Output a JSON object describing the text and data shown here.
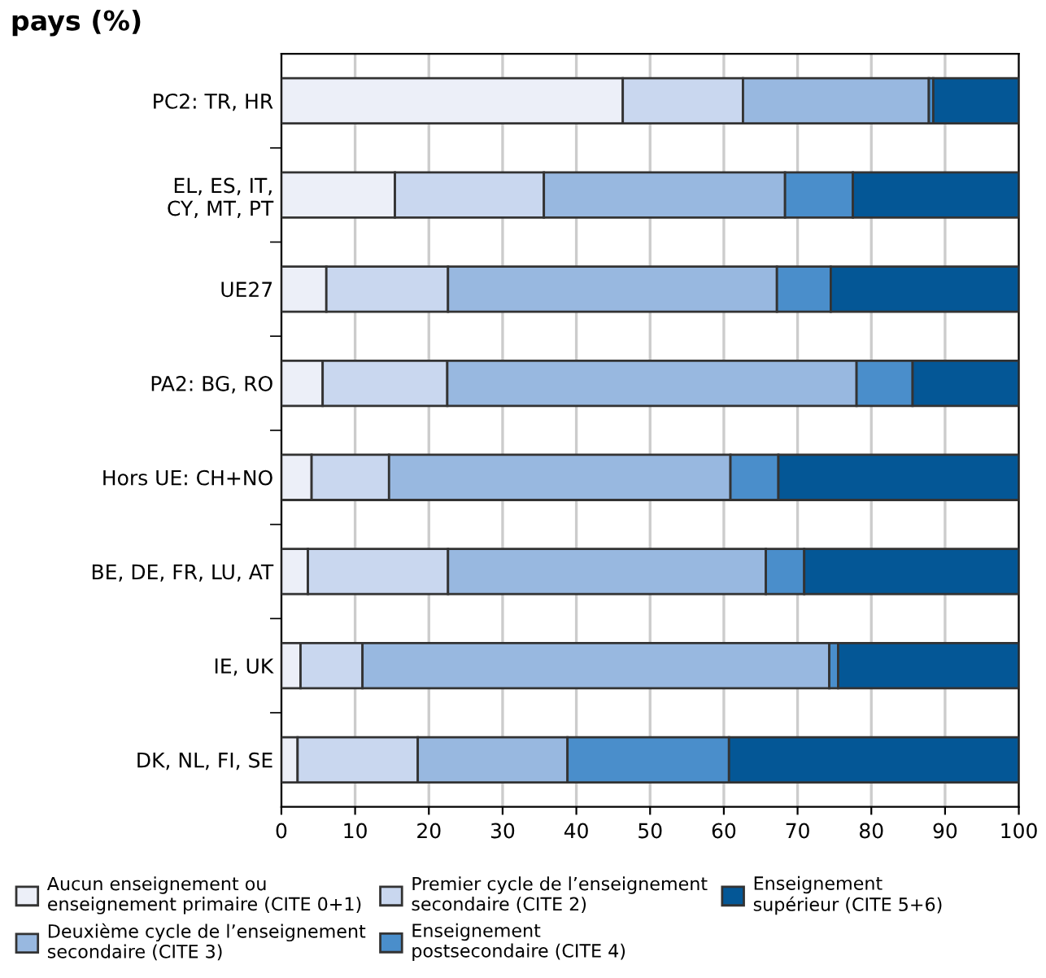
{
  "chart_data": {
    "type": "bar",
    "orientation": "horizontal",
    "stacked": true,
    "title": "pays (%)",
    "categories": [
      "PC2: TR, HR",
      "EL, ES, IT,\nCY, MT, PT",
      "UE27",
      "PA2: BG, RO",
      "Hors UE: CH+NO",
      "BE, DE, FR, LU, AT",
      "IE, UK",
      "DK, NL, FI, SE"
    ],
    "series": [
      {
        "name": "Aucun enseignement ou\nenseignement primaire (CITE 0+1)",
        "color": "#eceff8",
        "values": [
          46.3,
          15.4,
          6.1,
          5.6,
          4.1,
          3.6,
          2.6,
          2.2
        ]
      },
      {
        "name": "Premier cycle de l’enseignement\nsecondaire (CITE 2)",
        "color": "#c9d7ef",
        "values": [
          16.3,
          20.2,
          16.5,
          16.9,
          10.5,
          19.0,
          8.4,
          16.3
        ]
      },
      {
        "name": "Deuxième cycle de l’enseignement\nsecondaire (CITE 3)",
        "color": "#98b8e0",
        "values": [
          25.2,
          32.7,
          44.6,
          55.5,
          46.3,
          43.1,
          63.3,
          20.3
        ]
      },
      {
        "name": "Enseignement\npostsecondaire (CITE 4)",
        "color": "#4a8ecb",
        "values": [
          0.6,
          9.2,
          7.3,
          7.6,
          6.5,
          5.2,
          1.2,
          21.9
        ]
      },
      {
        "name": "Enseignement\nsupérieur (CITE 5+6)",
        "color": "#045796",
        "values": [
          11.6,
          22.5,
          25.5,
          14.4,
          32.6,
          29.1,
          24.5,
          39.3
        ]
      }
    ],
    "xlim": [
      0,
      100
    ],
    "xticks": [
      0,
      10,
      20,
      30,
      40,
      50,
      60,
      70,
      80,
      90,
      100
    ],
    "grid": "x",
    "legend": "bottom"
  }
}
